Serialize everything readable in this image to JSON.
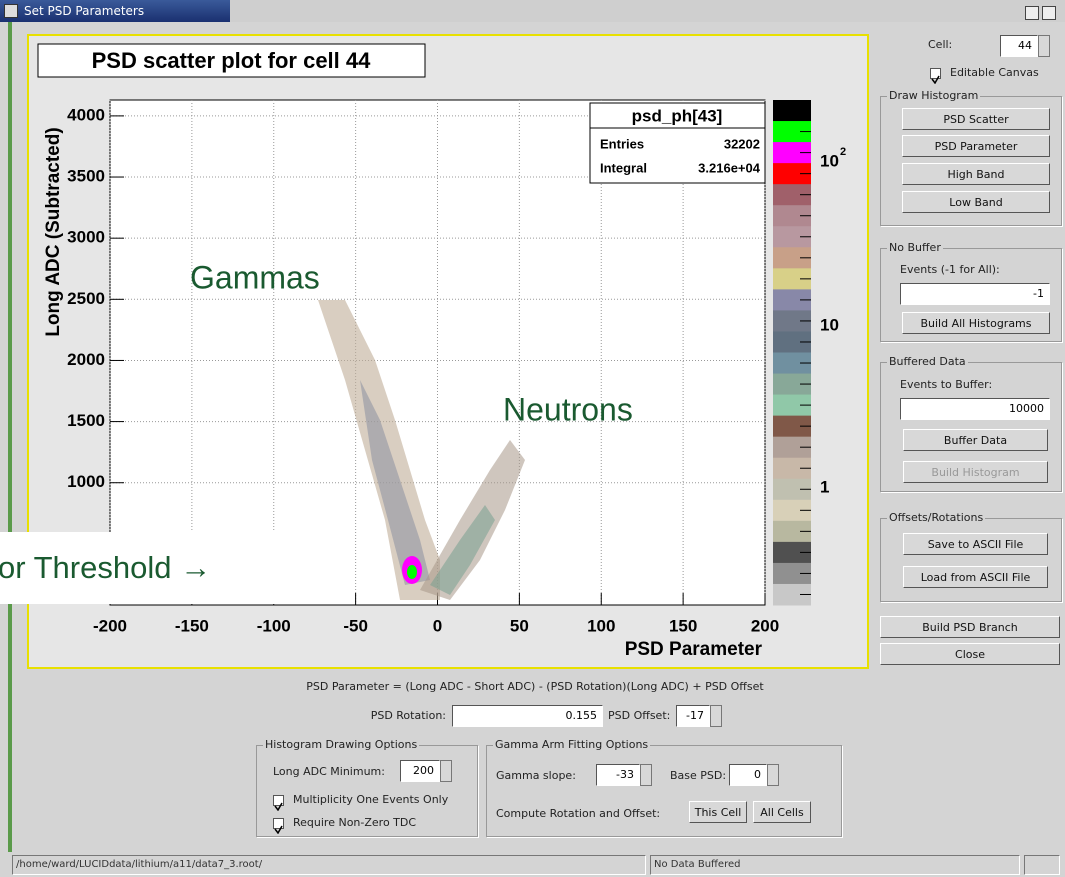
{
  "window": {
    "title": "Set PSD Parameters"
  },
  "canvas": {
    "title": "PSD scatter plot for cell 44",
    "y_label": "Long ADC (Subtracted)",
    "x_label": "PSD Parameter",
    "xlim": [
      -200,
      200
    ],
    "xticks": [
      -200,
      -150,
      -100,
      -50,
      0,
      50,
      100,
      150,
      200
    ],
    "ylim": [
      0,
      4130
    ],
    "yticks": [
      1000,
      1500,
      2000,
      2500,
      3000,
      3500,
      4000
    ],
    "stats": {
      "name": "psd_ph[43]",
      "rows": [
        [
          "Entries",
          "32202"
        ],
        [
          "Integral",
          "3.216e+04"
        ]
      ]
    },
    "color_scale": {
      "top": {
        "base": "10",
        "exponent": "2"
      },
      "middle": "10",
      "bottom": "1"
    },
    "annotations": {
      "gammas": "Gammas",
      "neutrons": "Neutrons",
      "threshold": "or Threshold →"
    }
  },
  "side_panel": {
    "cell_label": "Cell:",
    "cell_value": "44",
    "editable_canvas": "Editable Canvas",
    "draw_histogram": {
      "title": "Draw Histogram",
      "buttons": [
        "PSD Scatter",
        "PSD Parameter",
        "High Band",
        "Low Band"
      ]
    },
    "no_buffer": {
      "title": "No Buffer",
      "label": "Events (-1 for All):",
      "value": "-1",
      "button": "Build All Histograms"
    },
    "buffered": {
      "title": "Buffered Data",
      "label": "Events to Buffer:",
      "value": "10000",
      "buttons": [
        "Buffer Data",
        "Build Histogram"
      ]
    },
    "offsets": {
      "title": "Offsets/Rotations",
      "buttons": [
        "Save to ASCII File",
        "Load from ASCII File"
      ]
    },
    "build_branch": "Build PSD Branch",
    "close": "Close"
  },
  "bottom": {
    "formula": "PSD Parameter = (Long ADC - Short ADC) - (PSD Rotation)(Long ADC) + PSD Offset",
    "rotation_label": "PSD Rotation:",
    "rotation_value": "0.155",
    "offset_label": "PSD Offset:",
    "offset_value": "-17",
    "histogram_options": {
      "title": "Histogram Drawing Options",
      "min_label": "Long ADC Minimum:",
      "min_value": "200",
      "checks": [
        "Multiplicity One Events Only",
        "Require Non-Zero TDC"
      ]
    },
    "gamma_options": {
      "title": "Gamma Arm Fitting Options",
      "slope_label": "Gamma slope:",
      "slope_value": "-33",
      "base_label": "Base PSD:",
      "base_value": "0",
      "compute_label": "Compute Rotation and Offset:",
      "buttons": [
        "This Cell",
        "All Cells"
      ]
    }
  },
  "status": {
    "path": "/home/ward/LUCIDdata/lithium/a11/data7_3.root/",
    "message": "No Data Buffered"
  }
}
